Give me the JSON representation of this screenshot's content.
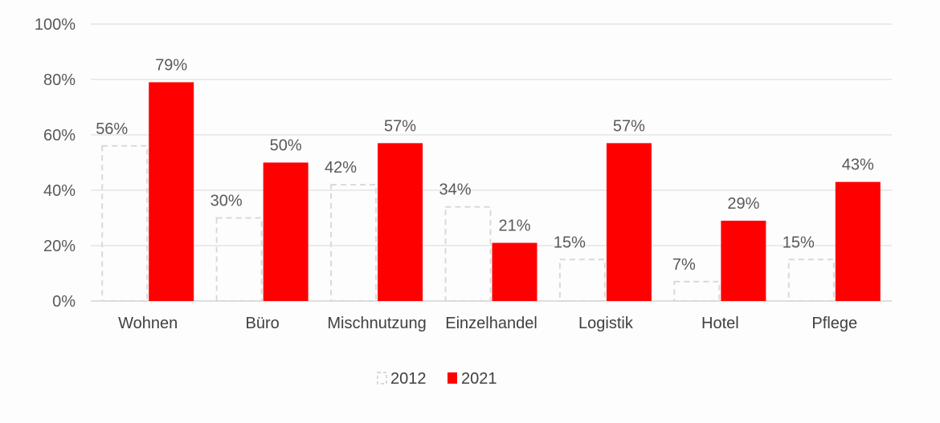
{
  "chart_data": {
    "type": "bar",
    "categories": [
      "Wohnen",
      "Büro",
      "Mischnutzung",
      "Einzelhandel",
      "Logistik",
      "Hotel",
      "Pflege"
    ],
    "series": [
      {
        "name": "2012",
        "values": [
          56,
          30,
          42,
          34,
          15,
          7,
          15
        ],
        "labels": [
          "56%",
          "30%",
          "42%",
          "34%",
          "15%",
          "7%",
          "15%"
        ],
        "style": "dashed-outline",
        "color": "#d9d9d9"
      },
      {
        "name": "2021",
        "values": [
          79,
          50,
          57,
          21,
          57,
          29,
          43
        ],
        "labels": [
          "79%",
          "50%",
          "57%",
          "21%",
          "57%",
          "29%",
          "43%"
        ],
        "style": "filled",
        "color": "#ff0000"
      }
    ],
    "yticks": [
      "0%",
      "20%",
      "40%",
      "60%",
      "80%",
      "100%"
    ],
    "ylim": [
      0,
      100
    ],
    "grid": true,
    "legend_position": "bottom-center",
    "title": "",
    "xlabel": "",
    "ylabel": ""
  }
}
